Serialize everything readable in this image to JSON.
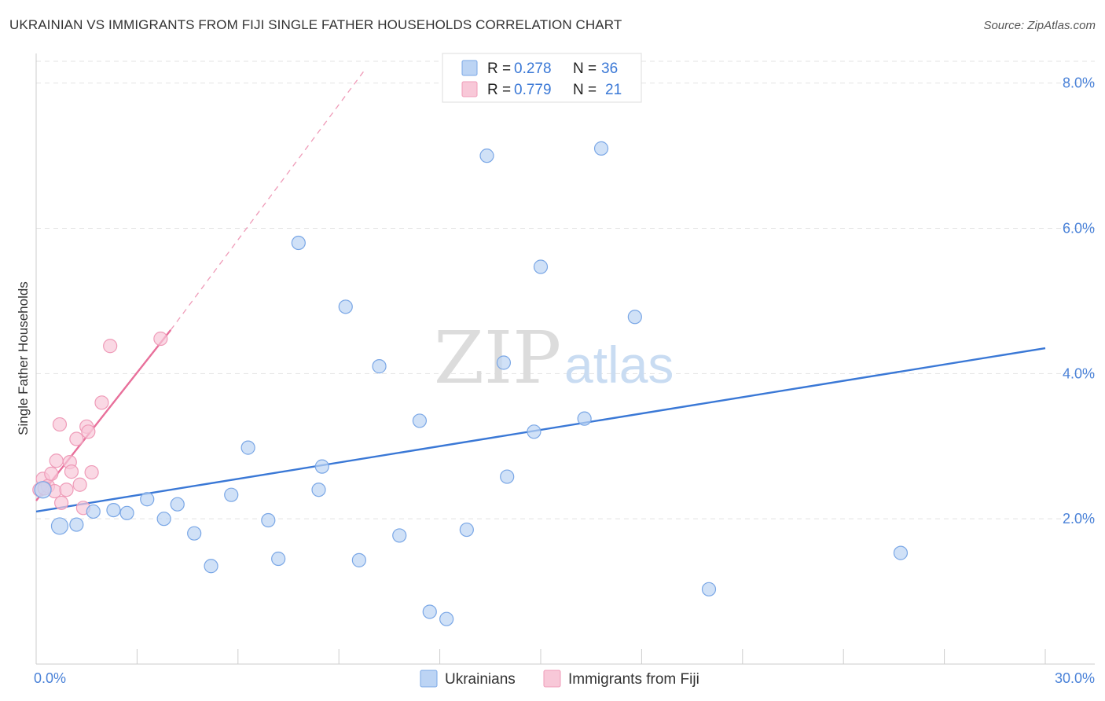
{
  "title": "UKRAINIAN VS IMMIGRANTS FROM FIJI SINGLE FATHER HOUSEHOLDS CORRELATION CHART",
  "source": "Source: ZipAtlas.com",
  "watermark": {
    "zip": "ZIP",
    "atlas": "atlas"
  },
  "legend": {
    "r_label": "R =",
    "n_label": "N =",
    "rows": [
      {
        "r": "0.278",
        "n": "36",
        "fill": "#bcd4f4",
        "stroke": "#7aa7e6"
      },
      {
        "r": "0.779",
        "n": "21",
        "fill": "#f8c8d8",
        "stroke": "#ef9bb8"
      }
    ]
  },
  "chart_data": {
    "type": "scatter",
    "title": "UKRAINIAN VS IMMIGRANTS FROM FIJI SINGLE FATHER HOUSEHOLDS CORRELATION CHART",
    "xlabel": "",
    "ylabel": "Single Father Households",
    "xlim": [
      0,
      30
    ],
    "ylim": [
      0,
      8.3
    ],
    "x_tick_labels": [
      "0.0%",
      "30.0%"
    ],
    "y_ticks": [
      {
        "value": 2,
        "label": "2.0%"
      },
      {
        "value": 4,
        "label": "4.0%"
      },
      {
        "value": 6,
        "label": "6.0%"
      },
      {
        "value": 8,
        "label": "8.0%"
      }
    ],
    "series": [
      {
        "name": "Ukrainians",
        "color": "#3a78d6",
        "fill": "#bcd4f4",
        "stroke": "#7aa7e6",
        "trend": {
          "x0": 0,
          "y0": 2.1,
          "x1": 30,
          "y1": 4.35
        },
        "points": [
          {
            "x": 0.2,
            "y": 2.4,
            "big": true
          },
          {
            "x": 0.7,
            "y": 1.9,
            "big": true
          },
          {
            "x": 1.2,
            "y": 1.92
          },
          {
            "x": 1.7,
            "y": 2.1
          },
          {
            "x": 2.3,
            "y": 2.12
          },
          {
            "x": 2.7,
            "y": 2.08
          },
          {
            "x": 3.3,
            "y": 2.27
          },
          {
            "x": 3.8,
            "y": 2.0
          },
          {
            "x": 4.2,
            "y": 2.2
          },
          {
            "x": 4.7,
            "y": 1.8
          },
          {
            "x": 5.2,
            "y": 1.35
          },
          {
            "x": 5.8,
            "y": 2.33
          },
          {
            "x": 6.3,
            "y": 2.98
          },
          {
            "x": 6.9,
            "y": 1.98
          },
          {
            "x": 7.2,
            "y": 1.45
          },
          {
            "x": 7.8,
            "y": 5.8
          },
          {
            "x": 8.4,
            "y": 2.4
          },
          {
            "x": 8.5,
            "y": 2.72
          },
          {
            "x": 9.2,
            "y": 4.92
          },
          {
            "x": 9.6,
            "y": 1.43
          },
          {
            "x": 10.2,
            "y": 4.1
          },
          {
            "x": 10.8,
            "y": 1.77
          },
          {
            "x": 11.4,
            "y": 3.35
          },
          {
            "x": 11.7,
            "y": 0.72
          },
          {
            "x": 12.2,
            "y": 0.62
          },
          {
            "x": 12.8,
            "y": 1.85
          },
          {
            "x": 13.4,
            "y": 7.0
          },
          {
            "x": 14.0,
            "y": 2.58
          },
          {
            "x": 13.9,
            "y": 4.15
          },
          {
            "x": 14.8,
            "y": 3.2
          },
          {
            "x": 15.0,
            "y": 5.47
          },
          {
            "x": 16.3,
            "y": 3.38
          },
          {
            "x": 16.8,
            "y": 7.1
          },
          {
            "x": 17.8,
            "y": 4.78
          },
          {
            "x": 20.0,
            "y": 1.03
          },
          {
            "x": 25.7,
            "y": 1.53
          }
        ]
      },
      {
        "name": "Immigrants from Fiji",
        "color": "#e8709b",
        "fill": "#f8c8d8",
        "stroke": "#ef9bb8",
        "trend": {
          "x0": 0,
          "y0": 2.25,
          "x1": 4.0,
          "y1": 4.6,
          "dash_to_x": 9.8,
          "dash_to_y": 8.2
        },
        "points": [
          {
            "x": 0.1,
            "y": 2.4
          },
          {
            "x": 0.2,
            "y": 2.55
          },
          {
            "x": 0.35,
            "y": 2.45
          },
          {
            "x": 0.45,
            "y": 2.62
          },
          {
            "x": 0.55,
            "y": 2.38
          },
          {
            "x": 0.6,
            "y": 2.8
          },
          {
            "x": 0.7,
            "y": 3.3
          },
          {
            "x": 0.75,
            "y": 2.22
          },
          {
            "x": 0.9,
            "y": 2.4
          },
          {
            "x": 1.0,
            "y": 2.78
          },
          {
            "x": 1.05,
            "y": 2.65
          },
          {
            "x": 1.2,
            "y": 3.1
          },
          {
            "x": 1.3,
            "y": 2.47
          },
          {
            "x": 1.4,
            "y": 2.15
          },
          {
            "x": 1.5,
            "y": 3.27
          },
          {
            "x": 1.55,
            "y": 3.2
          },
          {
            "x": 1.65,
            "y": 2.64
          },
          {
            "x": 1.95,
            "y": 3.6
          },
          {
            "x": 2.2,
            "y": 4.38
          },
          {
            "x": 3.7,
            "y": 4.48
          },
          {
            "x": 0.25,
            "y": 2.42
          }
        ]
      }
    ]
  }
}
